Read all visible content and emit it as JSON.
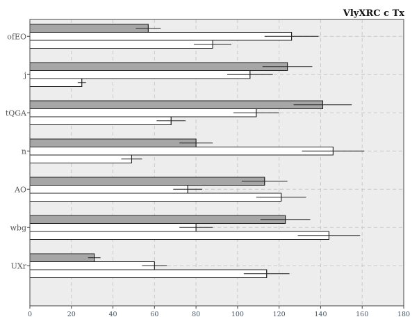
{
  "chart_data": {
    "type": "bar",
    "orientation": "horizontal",
    "title": "VlyXRC  c Tx",
    "xlabel": "",
    "ylabel": "",
    "xlim": [
      0,
      180
    ],
    "xticks": [
      0,
      20,
      40,
      60,
      80,
      100,
      120,
      140,
      160,
      180
    ],
    "grid": true,
    "categories": [
      "ofEO",
      "j",
      "tQGA",
      "n",
      "AO",
      "wbg",
      "UXr"
    ],
    "series": [
      {
        "color": "#a6a6a6",
        "values": [
          57,
          124,
          141,
          80,
          113,
          123,
          31
        ],
        "errors": [
          6,
          12,
          14,
          8,
          11,
          12,
          3
        ]
      },
      {
        "color": "#ffffff",
        "values": [
          126,
          106,
          109,
          146,
          76,
          80,
          60
        ],
        "errors": [
          13,
          11,
          11,
          15,
          7,
          8,
          6
        ]
      },
      {
        "color": "#ffffff",
        "values": [
          88,
          25,
          68,
          49,
          121,
          144,
          114
        ],
        "errors": [
          9,
          2,
          7,
          5,
          12,
          15,
          11
        ]
      }
    ]
  }
}
